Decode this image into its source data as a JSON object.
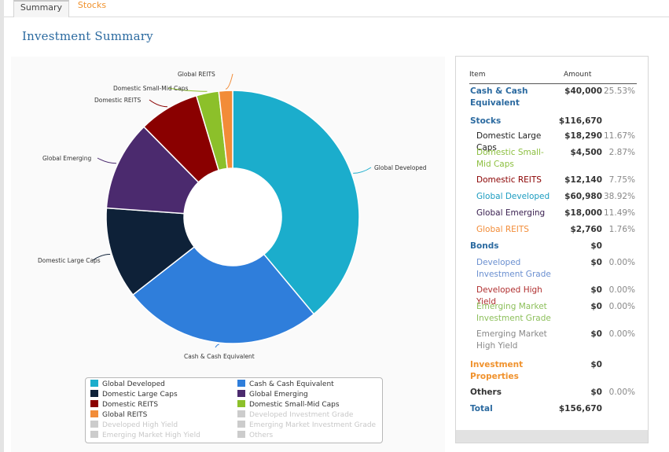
{
  "tabs": [
    {
      "label": "Summary",
      "active": true
    },
    {
      "label": "Stocks",
      "active": false
    }
  ],
  "page_title": "Investment Summary",
  "chart_data": {
    "type": "pie",
    "style": "donut",
    "slices": [
      {
        "label": "Global Developed",
        "value": 60980,
        "percent": 38.92,
        "color": "#1badcc",
        "callout": "Global Developed"
      },
      {
        "label": "Cash & Cash Equivalent",
        "value": 40000,
        "percent": 25.53,
        "color": "#2f7edb",
        "callout": "Cash & Cash Equivalent"
      },
      {
        "label": "Domestic Large Caps",
        "value": 18290,
        "percent": 11.67,
        "color": "#0e2138",
        "callout": "Domestic Large Caps"
      },
      {
        "label": "Global Emerging",
        "value": 18000,
        "percent": 11.49,
        "color": "#4b2a6e",
        "callout": "Global Emerging"
      },
      {
        "label": "Domestic REITS",
        "value": 12140,
        "percent": 7.75,
        "color": "#8a0000",
        "callout": "Domestic REITS"
      },
      {
        "label": "Domestic Small-Mid Caps",
        "value": 4500,
        "percent": 2.87,
        "color": "#8cc02a",
        "callout": "Domestic Small-Mid Caps"
      },
      {
        "label": "Global REITS",
        "value": 2760,
        "percent": 1.76,
        "color": "#f28c38",
        "callout": "Global REITS"
      }
    ],
    "legend": [
      {
        "label": "Global Developed",
        "color": "#1badcc",
        "active": true
      },
      {
        "label": "Cash & Cash Equivalent",
        "color": "#2f7edb",
        "active": true
      },
      {
        "label": "Domestic Large Caps",
        "color": "#0e2138",
        "active": true
      },
      {
        "label": "Global Emerging",
        "color": "#4b2a6e",
        "active": true
      },
      {
        "label": "Domestic REITS",
        "color": "#8a0000",
        "active": true
      },
      {
        "label": "Domestic Small-Mid Caps",
        "color": "#8cc02a",
        "active": true
      },
      {
        "label": "Global REITS",
        "color": "#f28c38",
        "active": true
      },
      {
        "label": "Developed Investment Grade",
        "color": "#cccccc",
        "active": false
      },
      {
        "label": "Developed High Yield",
        "color": "#cccccc",
        "active": false
      },
      {
        "label": "Emerging Market Investment Grade",
        "color": "#cccccc",
        "active": false
      },
      {
        "label": "Emerging Market High Yield",
        "color": "#cccccc",
        "active": false
      },
      {
        "label": "Others",
        "color": "#cccccc",
        "active": false
      }
    ]
  },
  "table": {
    "header": {
      "item": "Item",
      "amount": "Amount"
    },
    "rows": [
      {
        "item": "Cash & Cash Equivalent",
        "amount": "$40,000",
        "percent": "25.53%",
        "color": "#2b6aa0",
        "bold": true,
        "sub": false
      },
      {
        "item": "Stocks",
        "amount": "$116,670",
        "percent": "",
        "color": "#2b6aa0",
        "bold": true,
        "sub": false
      },
      {
        "item": "Domestic Large Caps",
        "amount": "$18,290",
        "percent": "11.67%",
        "color": "#222222",
        "bold": false,
        "sub": true
      },
      {
        "item": "Domestic Small-Mid Caps",
        "amount": "$4,500",
        "percent": "2.87%",
        "color": "#8cbf3f",
        "bold": false,
        "sub": true
      },
      {
        "item": "Domestic REITS",
        "amount": "$12,140",
        "percent": "7.75%",
        "color": "#8a0000",
        "bold": false,
        "sub": true
      },
      {
        "item": "Global Developed",
        "amount": "$60,980",
        "percent": "38.92%",
        "color": "#1b9cc0",
        "bold": false,
        "sub": true
      },
      {
        "item": "Global Emerging",
        "amount": "$18,000",
        "percent": "11.49%",
        "color": "#3a2050",
        "bold": false,
        "sub": true
      },
      {
        "item": "Global REITS",
        "amount": "$2,760",
        "percent": "1.76%",
        "color": "#f28c38",
        "bold": false,
        "sub": true
      },
      {
        "item": "Bonds",
        "amount": "$0",
        "percent": "",
        "color": "#2b6aa0",
        "bold": true,
        "sub": false
      },
      {
        "item": "Developed Investment Grade",
        "amount": "$0",
        "percent": "0.00%",
        "color": "#6a8fd0",
        "bold": false,
        "sub": true
      },
      {
        "item": "Developed High Yield",
        "amount": "$0",
        "percent": "0.00%",
        "color": "#b03030",
        "bold": false,
        "sub": true
      },
      {
        "item": "Emerging Market Investment Grade",
        "amount": "$0",
        "percent": "0.00%",
        "color": "#8cbf5a",
        "bold": false,
        "sub": true
      },
      {
        "item": "Emerging Market High Yield",
        "amount": "$0",
        "percent": "0.00%",
        "color": "#888888",
        "bold": false,
        "sub": true
      },
      {
        "item": "Investment Properties",
        "amount": "$0",
        "percent": "",
        "color": "#f0922d",
        "bold": true,
        "sub": false
      },
      {
        "item": "Others",
        "amount": "$0",
        "percent": "0.00%",
        "color": "#333333",
        "bold": true,
        "sub": false
      },
      {
        "item": "Total",
        "amount": "$156,670",
        "percent": "",
        "color": "#2b6aa0",
        "bold": true,
        "sub": false
      }
    ]
  }
}
